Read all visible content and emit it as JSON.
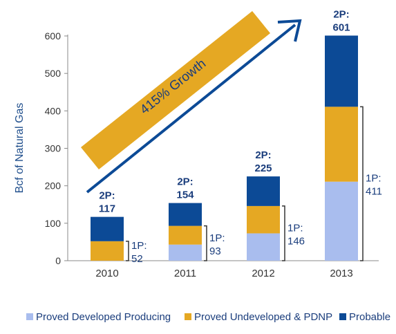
{
  "chart_data": {
    "type": "bar",
    "stacked": true,
    "categories": [
      "2010",
      "2011",
      "2012",
      "2013"
    ],
    "series": [
      {
        "name": "Proved Developed Producing",
        "color": "#a9bdee",
        "values": [
          0,
          43,
          73,
          211
        ]
      },
      {
        "name": "Proved Undeveloped & PDNP",
        "color": "#e5a823",
        "values": [
          52,
          50,
          73,
          200
        ]
      },
      {
        "name": "Probable",
        "color": "#0c4a96",
        "values": [
          65,
          61,
          79,
          190
        ]
      }
    ],
    "totals_2p": [
      {
        "prefix": "2P:",
        "value": "117"
      },
      {
        "prefix": "2P:",
        "value": "154"
      },
      {
        "prefix": "2P:",
        "value": "225"
      },
      {
        "prefix": "2P:",
        "value": "601"
      }
    ],
    "totals_1p": [
      {
        "prefix": "1P:",
        "value": "52"
      },
      {
        "prefix": "1P:",
        "value": "93"
      },
      {
        "prefix": "1P:",
        "value": "146"
      },
      {
        "prefix": "1P:",
        "value": "411"
      }
    ],
    "ylabel": "Bcf of Natural Gas",
    "xlabel": "",
    "ylim": [
      0,
      600
    ],
    "yticks": [
      0,
      100,
      200,
      300,
      400,
      500,
      600
    ],
    "annotation": "415% Growth",
    "annotation_color": "#e5a823",
    "arrow_color": "#0c4a96",
    "legend_position": "bottom"
  }
}
